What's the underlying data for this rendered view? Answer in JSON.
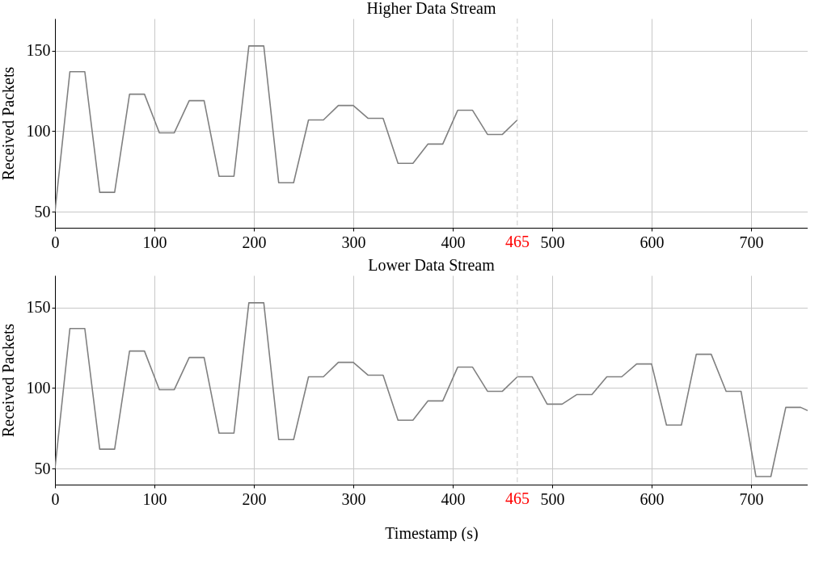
{
  "chart_data": [
    {
      "type": "line",
      "title": "Higher Data Stream",
      "ylabel": "Received Packets",
      "x": [
        0,
        15,
        30,
        45,
        60,
        75,
        90,
        105,
        120,
        135,
        150,
        165,
        180,
        195,
        210,
        225,
        240,
        255,
        270,
        285,
        300,
        315,
        330,
        345,
        360,
        375,
        390,
        405,
        420,
        435,
        450,
        465
      ],
      "series": [
        {
          "color": "#808080",
          "values": [
            50,
            137,
            137,
            62,
            62,
            123,
            123,
            99,
            99,
            119,
            119,
            72,
            72,
            153,
            153,
            68,
            68,
            107,
            107,
            116,
            116,
            108,
            108,
            80,
            80,
            92,
            92,
            113,
            113,
            98,
            98,
            107
          ]
        }
      ],
      "xlim": [
        0,
        757
      ],
      "xticks": [
        0,
        100,
        200,
        300,
        400,
        500,
        600,
        700
      ],
      "ylim": [
        40,
        170
      ],
      "yticks": [
        50,
        100,
        150
      ],
      "grid": true,
      "ref_lines": [
        {
          "axis": "x",
          "value": 465,
          "label": "465",
          "color": "#cccccc",
          "line_style": "dashed"
        }
      ]
    },
    {
      "type": "line",
      "title": "Lower Data Stream",
      "ylabel": "Received Packets",
      "xlabel": "Timestamp (s)",
      "x": [
        0,
        15,
        30,
        45,
        60,
        75,
        90,
        105,
        120,
        135,
        150,
        165,
        180,
        195,
        210,
        225,
        240,
        255,
        270,
        285,
        300,
        315,
        330,
        345,
        360,
        375,
        390,
        405,
        420,
        435,
        450,
        465,
        480,
        495,
        510,
        525,
        540,
        555,
        570,
        585,
        600,
        615,
        630,
        645,
        660,
        675,
        690,
        705,
        720,
        735,
        750,
        757
      ],
      "series": [
        {
          "color": "#808080",
          "values": [
            50,
            137,
            137,
            62,
            62,
            123,
            123,
            99,
            99,
            119,
            119,
            72,
            72,
            153,
            153,
            68,
            68,
            107,
            107,
            116,
            116,
            108,
            108,
            80,
            80,
            92,
            92,
            113,
            113,
            98,
            98,
            107,
            107,
            90,
            90,
            96,
            96,
            107,
            107,
            115,
            115,
            77,
            77,
            121,
            121,
            98,
            98,
            45,
            45,
            88,
            88,
            86
          ]
        }
      ],
      "xlim": [
        0,
        757
      ],
      "xticks": [
        0,
        100,
        200,
        300,
        400,
        500,
        600,
        700
      ],
      "ylim": [
        40,
        170
      ],
      "yticks": [
        50,
        100,
        150
      ],
      "grid": true,
      "ref_lines": [
        {
          "axis": "x",
          "value": 465,
          "label": "465",
          "color": "#cccccc",
          "line_style": "dashed"
        }
      ]
    }
  ]
}
